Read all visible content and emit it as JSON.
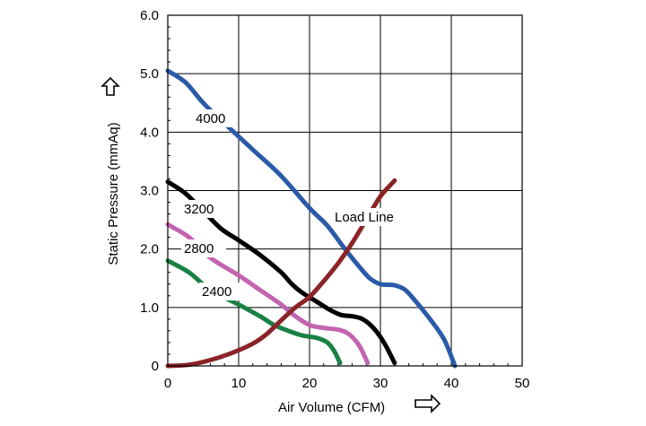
{
  "chart_data": {
    "type": "line",
    "xlabel": "Air Volume (CFM)",
    "ylabel": "Static Pressure (mmAq)",
    "xlim": [
      0,
      50
    ],
    "ylim": [
      0,
      6
    ],
    "x_ticks": [
      "0",
      "10",
      "20",
      "30",
      "40",
      "50"
    ],
    "y_ticks": [
      "0",
      "1.0",
      "2.0",
      "3.0",
      "4.0",
      "5.0",
      "6.0"
    ],
    "grid": true,
    "series": [
      {
        "name": "4000",
        "color": "#2b5aa8",
        "points": [
          [
            0,
            5.05
          ],
          [
            2.5,
            4.85
          ],
          [
            5,
            4.5
          ],
          [
            8,
            4.15
          ],
          [
            12,
            3.7
          ],
          [
            16,
            3.25
          ],
          [
            20,
            2.7
          ],
          [
            22.5,
            2.4
          ],
          [
            25,
            2.0
          ],
          [
            27,
            1.7
          ],
          [
            28.5,
            1.5
          ],
          [
            30,
            1.4
          ],
          [
            32,
            1.38
          ],
          [
            33.5,
            1.3
          ],
          [
            35,
            1.1
          ],
          [
            37,
            0.8
          ],
          [
            39,
            0.45
          ],
          [
            40.5,
            0.0
          ]
        ]
      },
      {
        "name": "3200",
        "color": "#000000",
        "points": [
          [
            0,
            3.15
          ],
          [
            2.5,
            2.95
          ],
          [
            5,
            2.65
          ],
          [
            7.5,
            2.35
          ],
          [
            10,
            2.15
          ],
          [
            13,
            1.9
          ],
          [
            16,
            1.6
          ],
          [
            17.5,
            1.4
          ],
          [
            19,
            1.25
          ],
          [
            21,
            1.1
          ],
          [
            23,
            0.95
          ],
          [
            24.5,
            0.87
          ],
          [
            26,
            0.85
          ],
          [
            27.5,
            0.8
          ],
          [
            29,
            0.65
          ],
          [
            30.5,
            0.4
          ],
          [
            32,
            0.05
          ]
        ]
      },
      {
        "name": "2800",
        "color": "#c464b0",
        "points": [
          [
            0,
            2.42
          ],
          [
            3,
            2.2
          ],
          [
            6,
            1.85
          ],
          [
            10,
            1.55
          ],
          [
            13,
            1.3
          ],
          [
            16,
            1.05
          ],
          [
            18,
            0.85
          ],
          [
            20,
            0.7
          ],
          [
            22,
            0.65
          ],
          [
            24,
            0.62
          ],
          [
            25.5,
            0.55
          ],
          [
            27,
            0.35
          ],
          [
            28.2,
            0.05
          ]
        ]
      },
      {
        "name": "2400",
        "color": "#1a8045",
        "points": [
          [
            0,
            1.8
          ],
          [
            3,
            1.6
          ],
          [
            6,
            1.3
          ],
          [
            10,
            1.05
          ],
          [
            13,
            0.85
          ],
          [
            15,
            0.7
          ],
          [
            17,
            0.6
          ],
          [
            19,
            0.52
          ],
          [
            21,
            0.48
          ],
          [
            22.5,
            0.4
          ],
          [
            23.5,
            0.25
          ],
          [
            24.3,
            0.05
          ]
        ]
      },
      {
        "name": "Load Line",
        "color": "#8b2428",
        "points": [
          [
            0,
            0.0
          ],
          [
            3,
            0.02
          ],
          [
            6,
            0.1
          ],
          [
            9,
            0.22
          ],
          [
            12,
            0.38
          ],
          [
            14,
            0.55
          ],
          [
            16,
            0.78
          ],
          [
            18,
            1.0
          ],
          [
            20,
            1.18
          ],
          [
            22,
            1.45
          ],
          [
            24,
            1.75
          ],
          [
            26,
            2.1
          ],
          [
            28,
            2.5
          ],
          [
            30,
            2.9
          ],
          [
            32,
            3.17
          ]
        ]
      }
    ]
  }
}
